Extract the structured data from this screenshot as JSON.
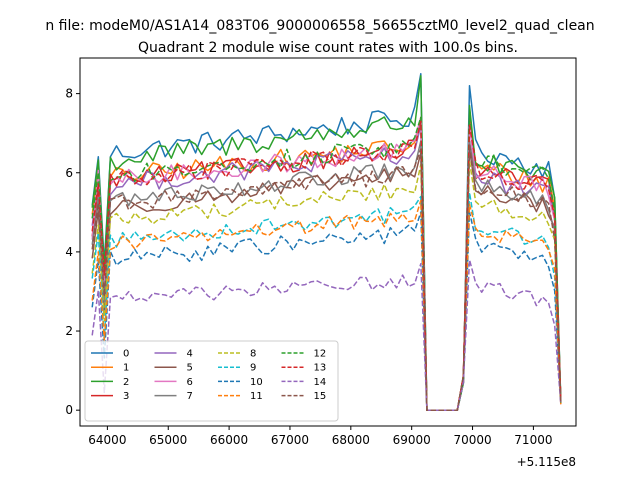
{
  "chart_data": {
    "type": "line",
    "suptitle": "n file: modeM0/AS1A14_083T06_9000006558_56655cztM0_level2_quad_clean",
    "title": "Quadrant 2 module wise count rates with 100.0s bins.",
    "xlabel": "",
    "ylabel": "",
    "x_offset_label": "+5.115e8",
    "xlim": [
      63550,
      71700
    ],
    "ylim": [
      -0.4,
      8.9
    ],
    "x_ticks": [
      64000,
      65000,
      66000,
      67000,
      68000,
      69000,
      70000,
      71000
    ],
    "x_tick_labels": [
      "64000",
      "65000",
      "66000",
      "67000",
      "68000",
      "69000",
      "70000",
      "71000"
    ],
    "y_ticks": [
      0,
      2,
      4,
      6,
      8
    ],
    "y_tick_labels": [
      "0",
      "2",
      "4",
      "6",
      "8"
    ],
    "legend": {
      "placement": "lower-left",
      "columns": 4
    },
    "x_range": {
      "start": 63750,
      "end": 71450,
      "step": 100
    },
    "gap": {
      "start": 69250,
      "end": 69750,
      "value": 0
    },
    "series": [
      {
        "name": "0",
        "color": "#1f77b4",
        "dash": "solid",
        "level": 6.5,
        "post_level": 6.3,
        "amp": 0.28,
        "ramp": 0.9,
        "peak": 8.5,
        "post_peak": 8.2
      },
      {
        "name": "1",
        "color": "#ff7f0e",
        "dash": "solid",
        "level": 5.9,
        "post_level": 5.9,
        "amp": 0.25,
        "ramp": 0.8,
        "peak": 7.4,
        "post_peak": 7.3
      },
      {
        "name": "2",
        "color": "#2ca02c",
        "dash": "solid",
        "level": 6.3,
        "post_level": 6.0,
        "amp": 0.28,
        "ramp": 1.0,
        "peak": 8.45,
        "post_peak": 7.7
      },
      {
        "name": "3",
        "color": "#d62728",
        "dash": "solid",
        "level": 5.8,
        "post_level": 5.8,
        "amp": 0.25,
        "ramp": 0.8,
        "peak": 7.3,
        "post_peak": 7.3
      },
      {
        "name": "4",
        "color": "#9467bd",
        "dash": "solid",
        "level": 5.7,
        "post_level": 5.6,
        "amp": 0.25,
        "ramp": 0.8,
        "peak": 7.2,
        "post_peak": 7.2
      },
      {
        "name": "5",
        "color": "#8c564b",
        "dash": "solid",
        "level": 5.1,
        "post_level": 5.3,
        "amp": 0.22,
        "ramp": 0.9,
        "peak": 6.5,
        "post_peak": 6.6
      },
      {
        "name": "6",
        "color": "#e377c2",
        "dash": "solid",
        "level": 5.8,
        "post_level": 5.8,
        "amp": 0.25,
        "ramp": 0.8,
        "peak": 7.4,
        "post_peak": 7.2
      },
      {
        "name": "7",
        "color": "#7f7f7f",
        "dash": "solid",
        "level": 5.3,
        "post_level": 5.4,
        "amp": 0.22,
        "ramp": 0.8,
        "peak": 6.8,
        "post_peak": 6.8
      },
      {
        "name": "8",
        "color": "#bcbd22",
        "dash": "dashed",
        "level": 4.8,
        "post_level": 5.0,
        "amp": 0.2,
        "ramp": 0.8,
        "peak": 6.2,
        "post_peak": 6.3
      },
      {
        "name": "9",
        "color": "#17becf",
        "dash": "dashed",
        "level": 4.3,
        "post_level": 4.4,
        "amp": 0.2,
        "ramp": 0.7,
        "peak": 5.4,
        "post_peak": 5.5
      },
      {
        "name": "10",
        "color": "#1f77b4",
        "dash": "dashed",
        "level": 3.8,
        "post_level": 3.9,
        "amp": 0.22,
        "ramp": 0.7,
        "peak": 5.0,
        "post_peak": 5.0
      },
      {
        "name": "11",
        "color": "#ff7f0e",
        "dash": "dashed",
        "level": 4.2,
        "post_level": 4.3,
        "amp": 0.2,
        "ramp": 0.7,
        "peak": 5.3,
        "post_peak": 5.2
      },
      {
        "name": "12",
        "color": "#2ca02c",
        "dash": "dashed",
        "level": 5.9,
        "post_level": 6.1,
        "amp": 0.25,
        "ramp": 0.8,
        "peak": 7.4,
        "post_peak": 7.5
      },
      {
        "name": "13",
        "color": "#d62728",
        "dash": "dashed",
        "level": 5.8,
        "post_level": 5.8,
        "amp": 0.25,
        "ramp": 0.8,
        "peak": 7.3,
        "post_peak": 7.2
      },
      {
        "name": "14",
        "color": "#9467bd",
        "dash": "dashed",
        "level": 2.8,
        "post_level": 2.9,
        "amp": 0.18,
        "ramp": 0.5,
        "peak": 3.7,
        "post_peak": 3.8
      },
      {
        "name": "15",
        "color": "#8c564b",
        "dash": "dashed",
        "level": 5.2,
        "post_level": 5.4,
        "amp": 0.22,
        "ramp": 0.8,
        "peak": 6.6,
        "post_peak": 6.7
      }
    ]
  }
}
